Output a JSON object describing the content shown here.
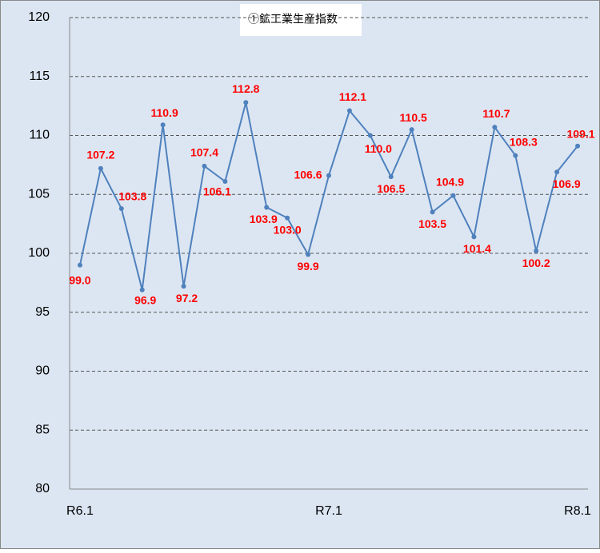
{
  "chart_data": {
    "type": "line",
    "title": "①鉱工業生産指数",
    "categories": [
      "R6.1",
      null,
      null,
      null,
      null,
      null,
      null,
      null,
      null,
      null,
      null,
      null,
      "R7.1",
      null,
      null,
      null,
      null,
      null,
      null,
      null,
      null,
      null,
      null,
      null,
      "R8.1"
    ],
    "series": [
      {
        "color": "#4f81bd",
        "values": [
          99.0,
          107.2,
          103.8,
          96.9,
          110.9,
          97.2,
          107.4,
          106.1,
          112.8,
          103.9,
          103.0,
          99.9,
          106.6,
          112.1,
          110.0,
          106.5,
          110.5,
          103.5,
          104.9,
          101.4,
          110.7,
          108.3,
          100.2,
          106.9,
          109.1
        ],
        "value_labels": [
          "99.0",
          "107.2",
          "103.8",
          "96.9",
          "110.9",
          "97.2",
          "107.4",
          "106.1",
          "112.8",
          "103.9",
          "103.0",
          "99.9",
          "106.6",
          "112.1",
          "110.0",
          "106.5",
          "110.5",
          "103.5",
          "104.9",
          "101.4",
          "110.7",
          "108.3",
          "100.2",
          "106.9",
          "109.1"
        ]
      }
    ],
    "ylim": [
      80,
      120
    ],
    "yticks": [
      80,
      85,
      90,
      95,
      100,
      105,
      110,
      115,
      120
    ],
    "grid": true
  }
}
